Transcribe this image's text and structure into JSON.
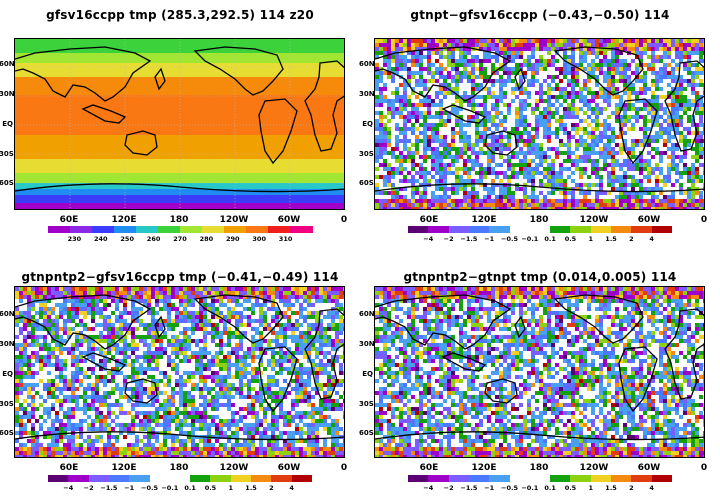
{
  "panels": [
    {
      "id": "p1",
      "title": "gfsv16ccpp  tmp  (285.3,292.5)  114  z20",
      "kind": "temp",
      "colorbar_labels": [
        "230",
        "240",
        "250",
        "260",
        "270",
        "280",
        "290",
        "300",
        "310"
      ]
    },
    {
      "id": "p2",
      "title": "gtnpt−gfsv16ccpp  (−0.43,−0.50)  114",
      "kind": "diff",
      "colorbar_labels": [
        "−4",
        "−2",
        "−1.5",
        "−1",
        "−0.5",
        "−0.1",
        "0.1",
        "0.5",
        "1",
        "1.5",
        "2",
        "4"
      ]
    },
    {
      "id": "p3",
      "title": "gtnpntp2−gfsv16ccpp  tmp  (−0.41,−0.49)  114",
      "kind": "diff",
      "colorbar_labels": [
        "−4",
        "−2",
        "−1.5",
        "−1",
        "−0.5",
        "−0.1",
        "0.1",
        "0.5",
        "1",
        "1.5",
        "2",
        "4"
      ]
    },
    {
      "id": "p4",
      "title": "gtnpntp2−gtnpt  tmp  (0.014,0.005)  114",
      "kind": "diff",
      "colorbar_labels": [
        "−4",
        "−2",
        "−1.5",
        "−1",
        "−0.5",
        "−0.1",
        "0.1",
        "0.5",
        "1",
        "1.5",
        "2",
        "4"
      ]
    }
  ],
  "lat_labels": [
    "60N",
    "30N",
    "EQ",
    "30S",
    "60S"
  ],
  "lon_labels": [
    "60E",
    "120E",
    "180",
    "120W",
    "60W",
    "0"
  ],
  "temp_colors": [
    "#a000c8",
    "#8c28e6",
    "#3c3cff",
    "#1e8cf0",
    "#28c8c8",
    "#3cd23c",
    "#a0e632",
    "#e6dc32",
    "#f0a000",
    "#fa7814",
    "#f01e1e",
    "#f00082"
  ],
  "diff_colors": [
    "#5a0073",
    "#9f00c9",
    "#7a5cff",
    "#4a78ff",
    "#4aa0f0",
    "#ffffff",
    "#ffffff",
    "#13a10e",
    "#8cd210",
    "#f0d020",
    "#f58a10",
    "#e03c10",
    "#b00000"
  ]
}
